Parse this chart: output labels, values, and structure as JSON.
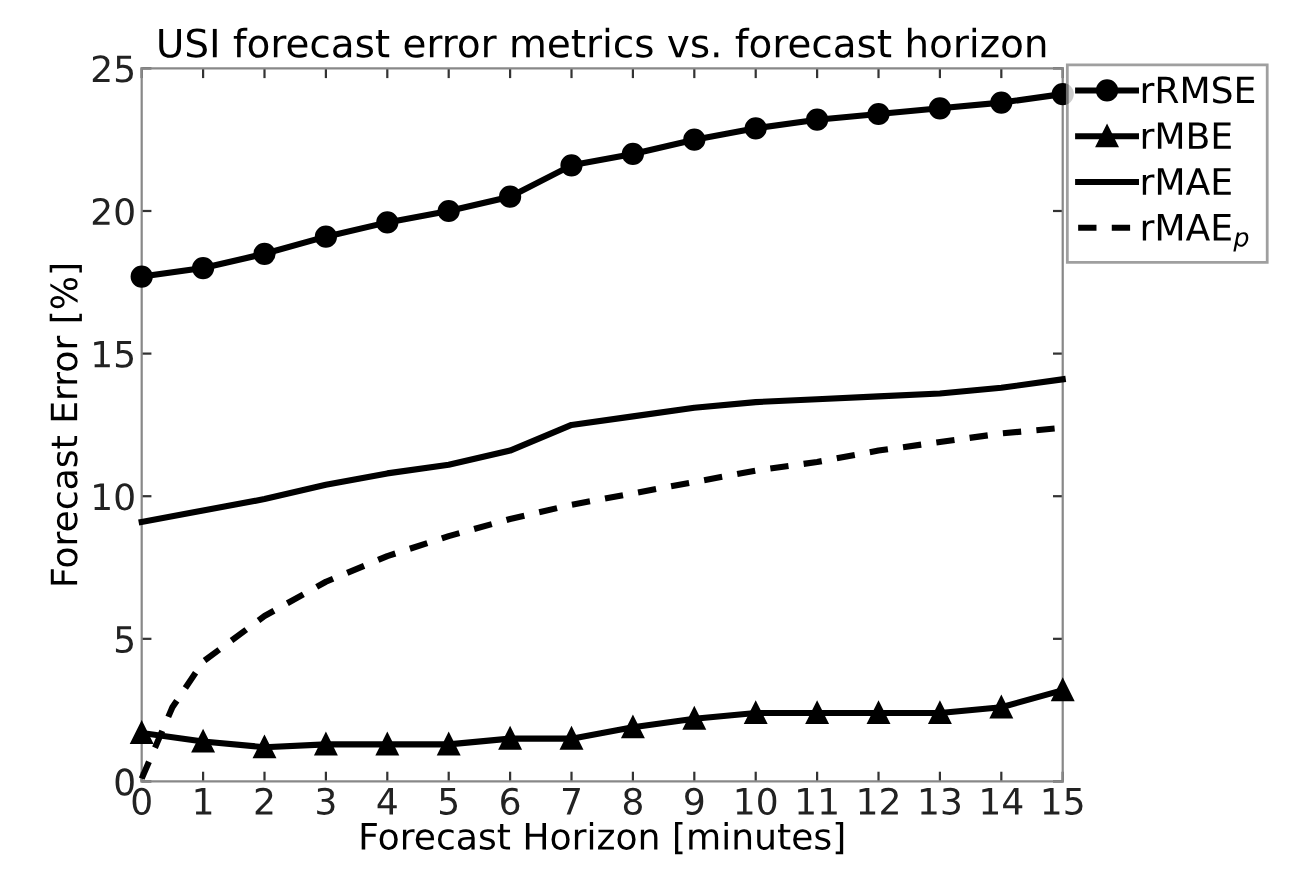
{
  "chart_data": {
    "type": "line",
    "title": "USI forecast error metrics vs. forecast horizon",
    "xlabel": "Forecast Horizon [minutes]",
    "ylabel": "Forecast Error [%]",
    "xlim": [
      0,
      15
    ],
    "xticks": [
      0,
      1,
      2,
      3,
      4,
      5,
      6,
      7,
      8,
      9,
      10,
      11,
      12,
      13,
      14,
      15
    ],
    "ylim": [
      0,
      25
    ],
    "yticks": [
      0,
      5,
      10,
      15,
      20,
      25
    ],
    "grid": false,
    "legend": "top right",
    "series": [
      {
        "name": "rRMSE",
        "color": "#000000",
        "marker": "circle",
        "line_style": "solid",
        "x": [
          0,
          1,
          2,
          3,
          4,
          5,
          6,
          7,
          8,
          9,
          10,
          11,
          12,
          13,
          14,
          15
        ],
        "values": [
          17.7,
          18.0,
          18.5,
          19.1,
          19.6,
          20.0,
          20.5,
          21.6,
          22.0,
          22.5,
          22.9,
          23.2,
          23.4,
          23.6,
          23.8,
          24.1
        ]
      },
      {
        "name": "rMBE",
        "color": "#000000",
        "marker": "triangle",
        "line_style": "solid",
        "x": [
          0,
          1,
          2,
          3,
          4,
          5,
          6,
          7,
          8,
          9,
          10,
          11,
          12,
          13,
          14,
          15
        ],
        "values": [
          1.7,
          1.4,
          1.2,
          1.3,
          1.3,
          1.3,
          1.5,
          1.5,
          1.9,
          2.2,
          2.4,
          2.4,
          2.4,
          2.4,
          2.6,
          3.2
        ]
      },
      {
        "name": "rMAE",
        "color": "#000000",
        "marker": "none",
        "line_style": "solid",
        "x": [
          0,
          1,
          2,
          3,
          4,
          5,
          6,
          7,
          8,
          9,
          10,
          11,
          12,
          13,
          14,
          15
        ],
        "values": [
          9.1,
          9.5,
          9.9,
          10.4,
          10.8,
          11.1,
          11.6,
          12.5,
          12.8,
          13.1,
          13.3,
          13.4,
          13.5,
          13.6,
          13.8,
          14.1
        ]
      },
      {
        "name": "rMAE$_{p}$",
        "color": "#000000",
        "marker": "none",
        "line_style": "dashed",
        "x": [
          0,
          0.5,
          1,
          2,
          3,
          4,
          5,
          6,
          7,
          8,
          9,
          10,
          11,
          12,
          13,
          14,
          15
        ],
        "values": [
          0.1,
          2.6,
          4.2,
          5.8,
          7.0,
          7.9,
          8.6,
          9.2,
          9.7,
          10.1,
          10.5,
          10.9,
          11.2,
          11.6,
          11.9,
          12.2,
          12.4
        ]
      }
    ]
  }
}
